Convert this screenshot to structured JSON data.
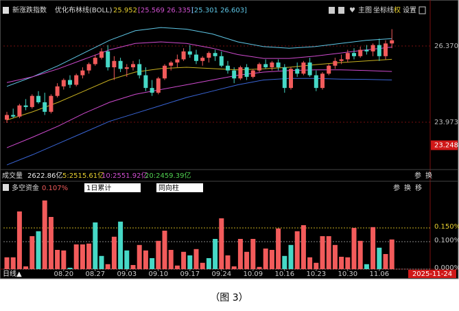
{
  "header": {
    "index_name": "新涨跌指数",
    "indicator": "优化布林线(BOLL)",
    "mid": "25.952",
    "band1": "[25.569 26.335]",
    "band2": "[25.301 26.603]",
    "buttons": [
      "主图",
      "坐标线",
      "权",
      "设置"
    ]
  },
  "volume": {
    "label": "成交量",
    "total": "2622.86亿",
    "ma5": "5:2515.61亿",
    "ma10": "10:2551.92亿",
    "ma20": "20:2459.39亿",
    "buttons": [
      "参",
      "换"
    ]
  },
  "indicator_header": {
    "label": "多空资金",
    "value": "0.107%",
    "select1": "1日累计",
    "select2": "同向柱",
    "buttons": [
      "参",
      "换",
      "移"
    ]
  },
  "period": "日线▲",
  "current_date": "2025-11-24",
  "caption": "（图 3）",
  "chart_data": [
    {
      "type": "candlestick",
      "ylim": [
        22.526,
        27.277
      ],
      "yticks": [
        {
          "value": 26.37,
          "label": "26.370"
        },
        {
          "value": 23.973,
          "label": "23.973"
        }
      ],
      "marker": {
        "value": 23.248,
        "label": "23.248"
      },
      "up_color": "#f25b5b",
      "down_color": "#46d8c6",
      "ohlc": [
        [
          24.05,
          24.3,
          23.95,
          24.2
        ],
        [
          24.2,
          24.4,
          24.1,
          24.15
        ],
        [
          24.15,
          24.55,
          24.1,
          24.5
        ],
        [
          24.5,
          24.7,
          24.35,
          24.45
        ],
        [
          24.45,
          24.85,
          24.4,
          24.8
        ],
        [
          24.8,
          24.95,
          24.55,
          24.6
        ],
        [
          24.6,
          24.9,
          24.2,
          24.3
        ],
        [
          24.3,
          24.85,
          24.25,
          24.8
        ],
        [
          24.8,
          25.2,
          24.75,
          25.1
        ],
        [
          25.1,
          25.35,
          25.0,
          25.3
        ],
        [
          25.3,
          25.45,
          25.05,
          25.15
        ],
        [
          25.15,
          25.5,
          25.1,
          25.45
        ],
        [
          25.45,
          25.7,
          25.35,
          25.6
        ],
        [
          25.6,
          25.85,
          25.5,
          25.8
        ],
        [
          25.8,
          26.1,
          25.75,
          26.0
        ],
        [
          26.0,
          26.3,
          25.95,
          26.2
        ],
        [
          26.2,
          26.4,
          25.6,
          25.7
        ],
        [
          25.7,
          26.05,
          25.3,
          25.9
        ],
        [
          25.9,
          26.0,
          25.55,
          25.65
        ],
        [
          25.65,
          25.8,
          25.4,
          25.7
        ],
        [
          25.7,
          25.9,
          25.6,
          25.8
        ],
        [
          25.8,
          25.95,
          25.35,
          25.45
        ],
        [
          25.45,
          25.7,
          24.95,
          25.05
        ],
        [
          25.05,
          25.3,
          24.8,
          24.9
        ],
        [
          24.9,
          25.4,
          24.85,
          25.35
        ],
        [
          25.35,
          25.8,
          25.3,
          25.75
        ],
        [
          25.75,
          25.9,
          25.6,
          25.85
        ],
        [
          25.85,
          26.1,
          25.7,
          25.95
        ],
        [
          25.95,
          26.3,
          25.9,
          26.2
        ],
        [
          26.2,
          26.4,
          26.0,
          26.1
        ],
        [
          26.1,
          26.25,
          25.8,
          25.9
        ],
        [
          25.9,
          26.05,
          25.75,
          26.0
        ],
        [
          26.0,
          26.2,
          25.85,
          26.15
        ],
        [
          26.15,
          26.25,
          25.9,
          26.05
        ],
        [
          26.05,
          26.2,
          25.7,
          25.75
        ],
        [
          25.75,
          25.9,
          25.5,
          25.6
        ],
        [
          25.6,
          25.7,
          25.2,
          25.35
        ],
        [
          25.35,
          25.75,
          25.3,
          25.7
        ],
        [
          25.7,
          25.8,
          25.3,
          25.4
        ],
        [
          25.4,
          25.65,
          25.35,
          25.6
        ],
        [
          25.6,
          25.85,
          25.55,
          25.8
        ],
        [
          25.8,
          25.95,
          25.65,
          25.7
        ],
        [
          25.7,
          25.9,
          25.6,
          25.85
        ],
        [
          25.85,
          25.95,
          25.6,
          25.7
        ],
        [
          25.7,
          25.8,
          24.9,
          25.05
        ],
        [
          25.05,
          25.7,
          25.0,
          25.65
        ],
        [
          25.65,
          25.85,
          25.4,
          25.5
        ],
        [
          25.5,
          25.9,
          25.45,
          25.85
        ],
        [
          25.85,
          26.0,
          25.4,
          25.45
        ],
        [
          25.45,
          25.6,
          24.95,
          25.05
        ],
        [
          25.05,
          25.55,
          25.0,
          25.5
        ],
        [
          25.5,
          25.8,
          25.45,
          25.75
        ],
        [
          25.75,
          26.0,
          25.65,
          25.9
        ],
        [
          25.9,
          26.1,
          25.8,
          25.95
        ],
        [
          25.95,
          26.25,
          25.85,
          26.15
        ],
        [
          26.15,
          26.3,
          25.95,
          26.05
        ],
        [
          26.05,
          26.35,
          26.0,
          26.25
        ],
        [
          26.25,
          26.4,
          26.1,
          26.2
        ],
        [
          26.2,
          26.45,
          26.05,
          26.4
        ],
        [
          26.4,
          26.6,
          25.9,
          26.05
        ],
        [
          26.05,
          26.55,
          25.95,
          26.45
        ],
        [
          26.45,
          26.9,
          26.3,
          26.55
        ]
      ],
      "lines": [
        {
          "color": "#5fc8e8",
          "values": [
            25.1,
            25.4,
            25.75,
            26.15,
            26.55,
            26.85,
            26.95,
            26.9,
            26.75,
            26.5,
            26.35,
            26.3,
            26.35,
            26.45,
            26.55,
            26.603
          ]
        },
        {
          "color": "#d04bd0",
          "values": [
            25.22,
            25.4,
            25.65,
            25.95,
            26.25,
            26.45,
            26.5,
            26.45,
            26.3,
            26.1,
            25.98,
            25.98,
            26.05,
            26.15,
            26.25,
            26.335
          ]
        },
        {
          "color": "#c8b020",
          "values": [
            24.04,
            24.3,
            24.6,
            24.95,
            25.3,
            25.55,
            25.66,
            25.7,
            25.66,
            25.62,
            25.65,
            25.7,
            25.78,
            25.85,
            25.9,
            25.952
          ]
        },
        {
          "color": "#d04bd0",
          "values": [
            23.17,
            23.5,
            23.85,
            24.25,
            24.6,
            24.85,
            25.0,
            25.15,
            25.3,
            25.45,
            25.55,
            25.6,
            25.62,
            25.62,
            25.6,
            25.569
          ]
        },
        {
          "color": "#3a66d8",
          "values": [
            22.63,
            22.95,
            23.3,
            23.65,
            24.0,
            24.25,
            24.5,
            24.75,
            24.95,
            25.15,
            25.3,
            25.35,
            25.35,
            25.33,
            25.32,
            25.301
          ]
        }
      ]
    },
    {
      "type": "bar",
      "ylim": [
        0,
        0.27
      ],
      "yticks": [
        {
          "value": 0.15,
          "label": "0.150%"
        },
        {
          "value": 0.1,
          "label": "0.100%"
        },
        {
          "value": 0,
          "label": "0.000%"
        }
      ],
      "values": [
        0.043,
        0.043,
        0.21,
        0.01,
        0.12,
        0.138,
        0.25,
        0.19,
        0.07,
        0.068,
        0.005,
        0.09,
        0.09,
        0.093,
        0.17,
        0.048,
        0.018,
        0.118,
        0.173,
        0.068,
        0.015,
        0.088,
        0.068,
        0.04,
        0.103,
        0.14,
        0.07,
        0.013,
        0.063,
        0.05,
        0.073,
        0.023,
        0.04,
        0.11,
        0.185,
        0.05,
        0.01,
        0.11,
        0.063,
        0.11,
        0.008,
        0.075,
        0.07,
        0.148,
        0.048,
        0.088,
        0.138,
        0.16,
        0.043,
        0.023,
        0.12,
        0.12,
        0.088,
        0.045,
        0.043,
        0.15,
        0.103,
        0.018,
        0.153,
        0.078,
        0.055,
        0.108
      ],
      "colors": [
        "#f25b5b",
        "#f25b5b",
        "#f25b5b",
        "#f25b5b",
        "#f25b5b",
        "#46d8c6",
        "#f25b5b",
        "#f25b5b",
        "#f25b5b",
        "#f25b5b",
        "#46d8c6",
        "#f25b5b",
        "#f25b5b",
        "#f25b5b",
        "#46d8c6",
        "#46d8c6",
        "#f25b5b",
        "#f25b5b",
        "#46d8c6",
        "#46d8c6",
        "#f25b5b",
        "#f25b5b",
        "#f25b5b",
        "#46d8c6",
        "#f25b5b",
        "#f25b5b",
        "#f25b5b",
        "#f25b5b",
        "#f25b5b",
        "#46d8c6",
        "#f25b5b",
        "#f25b5b",
        "#46d8c6",
        "#46d8c6",
        "#f25b5b",
        "#f25b5b",
        "#f25b5b",
        "#f25b5b",
        "#f25b5b",
        "#f25b5b",
        "#f25b5b",
        "#f25b5b",
        "#f25b5b",
        "#f25b5b",
        "#46d8c6",
        "#46d8c6",
        "#f25b5b",
        "#f25b5b",
        "#f25b5b",
        "#f25b5b",
        "#f25b5b",
        "#f25b5b",
        "#f25b5b",
        "#f25b5b",
        "#f25b5b",
        "#f25b5b",
        "#f25b5b",
        "#46d8c6",
        "#f25b5b",
        "#46d8c6",
        "#f25b5b",
        "#f25b5b"
      ],
      "categories": [
        null,
        null,
        null,
        null,
        null,
        null,
        null,
        null,
        null,
        "08.20",
        null,
        null,
        null,
        null,
        "08.27",
        null,
        null,
        null,
        null,
        "09.03",
        null,
        null,
        null,
        null,
        "09.10",
        null,
        null,
        null,
        null,
        "09.17",
        null,
        null,
        null,
        null,
        "09.24",
        null,
        null,
        null,
        null,
        "10.09",
        null,
        null,
        null,
        null,
        "10.16",
        null,
        null,
        null,
        null,
        "10.23",
        null,
        null,
        null,
        null,
        "10.30",
        null,
        null,
        null,
        null,
        "11.06",
        null,
        null
      ]
    }
  ]
}
